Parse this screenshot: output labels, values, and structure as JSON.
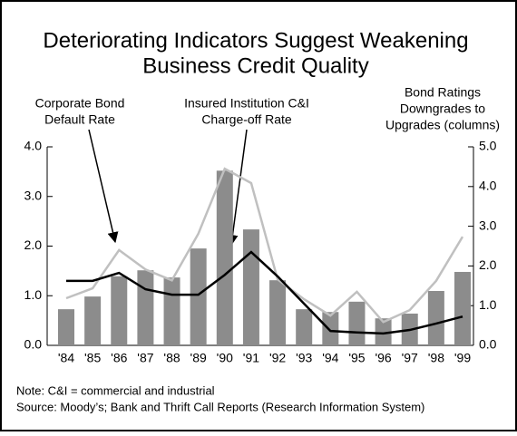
{
  "chart_data": {
    "type": "bar-line",
    "title": [
      "Deteriorating Indicators Suggest Weakening",
      "Business Credit Quality"
    ],
    "annotations": [
      [
        "Corporate Bond",
        "Default Rate"
      ],
      [
        "Insured Institution C&I",
        "Charge-off Rate"
      ],
      [
        "Bond Ratings",
        "Downgrades to",
        "Upgrades (columns)"
      ]
    ],
    "notes": [
      "Note: C&I = commercial and industrial",
      "Source: Moody’s; Bank and Thrift Call Reports (Research Information System)"
    ],
    "categories": [
      "'84",
      "'85",
      "'86",
      "'87",
      "'88",
      "'89",
      "'90",
      "'91",
      "'92",
      "'93",
      "'94",
      "'95",
      "'96",
      "'97",
      "'98",
      "'99"
    ],
    "series": [
      {
        "type": "bar",
        "axis": "y2",
        "color": "#8c8c8c",
        "values": [
          0.91,
          1.23,
          1.74,
          1.89,
          1.71,
          2.44,
          4.4,
          2.92,
          1.64,
          0.91,
          0.84,
          1.1,
          0.68,
          0.8,
          1.37,
          1.85
        ]
      },
      {
        "type": "line",
        "color": "#c0c0c0",
        "values": [
          0.95,
          1.15,
          1.92,
          1.53,
          1.31,
          2.25,
          3.56,
          3.27,
          1.33,
          0.93,
          0.6,
          1.08,
          0.47,
          0.71,
          1.3,
          2.19
        ]
      },
      {
        "type": "line",
        "color": "#000000",
        "values": [
          1.3,
          1.3,
          1.46,
          1.13,
          1.02,
          1.02,
          1.42,
          1.88,
          1.39,
          0.84,
          0.29,
          0.26,
          0.24,
          0.31,
          0.44,
          0.58
        ]
      }
    ],
    "ylim": [
      0,
      4
    ],
    "yticks": [
      {
        "value": 0,
        "label": "0.0"
      },
      {
        "value": 1,
        "label": "1.0"
      },
      {
        "value": 2,
        "label": "2.0"
      },
      {
        "value": 3,
        "label": "3.0"
      },
      {
        "value": 4,
        "label": "4.0"
      }
    ],
    "y2lim": [
      0,
      5
    ],
    "y2ticks": [
      {
        "value": 0,
        "label": "0.0"
      },
      {
        "value": 1,
        "label": "1.0"
      },
      {
        "value": 2,
        "label": "2.0"
      },
      {
        "value": 3,
        "label": "3.0"
      },
      {
        "value": 4,
        "label": "4.0"
      },
      {
        "value": 5,
        "label": "5.0"
      }
    ]
  }
}
